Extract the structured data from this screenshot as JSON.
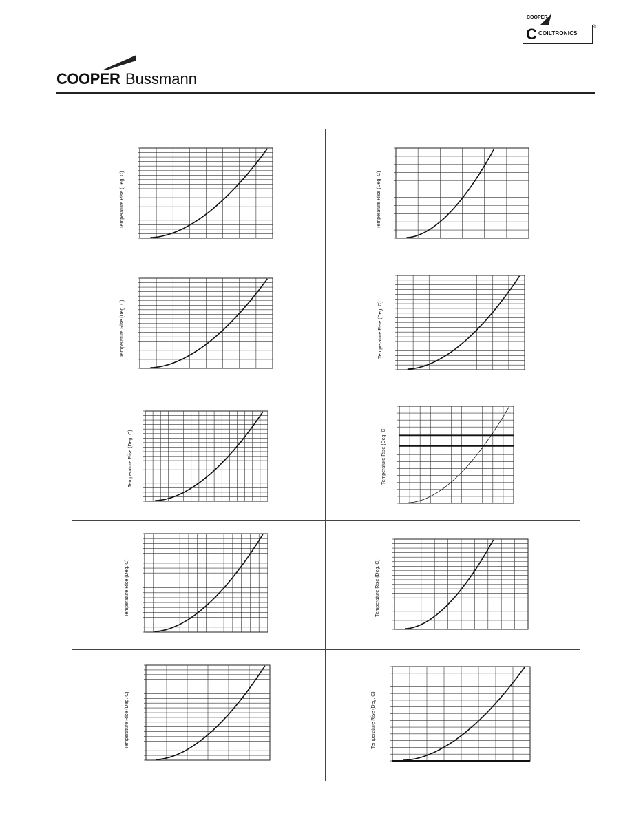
{
  "header": {
    "brand_cooper": "COOPER",
    "brand_bussmann": "Bussmann",
    "coiltronics_parent": "COOPER",
    "coiltronics_name": "COILTRONICS",
    "coiltronics_mark": "®"
  },
  "charts": [
    {
      "id": 1,
      "ylabel": "Temperature Rise (Deg. C)",
      "xdiv": 8,
      "ydiv": 20
    },
    {
      "id": 2,
      "ylabel": "Temperature Rise (Deg. C)",
      "xdiv": 6,
      "ydiv": 11
    },
    {
      "id": 3,
      "ylabel": "Temperature Rise (Deg. C)",
      "xdiv": 8,
      "ydiv": 20
    },
    {
      "id": 4,
      "ylabel": "Temperature Rise (Deg. C)",
      "xdiv": 8,
      "ydiv": 20
    },
    {
      "id": 5,
      "ylabel": "Temperature Rise (Deg. C)",
      "xdiv": 16,
      "ydiv": 20
    },
    {
      "id": 6,
      "ylabel": "Temperature Rise (Deg. C)",
      "xdiv": 11,
      "ydiv": 14
    },
    {
      "id": 7,
      "ylabel": "Temperature Rise (Deg. C)",
      "xdiv": 14,
      "ydiv": 20
    },
    {
      "id": 8,
      "ylabel": "Temperature Rise (Deg. C)",
      "xdiv": 10,
      "ydiv": 20
    },
    {
      "id": 9,
      "ylabel": "Temperature Rise (Deg. C)",
      "xdiv": 6,
      "ydiv": 20
    },
    {
      "id": 10,
      "ylabel": "Temperature Rise (Deg. C)",
      "xdiv": 8,
      "ydiv": 14
    }
  ]
}
